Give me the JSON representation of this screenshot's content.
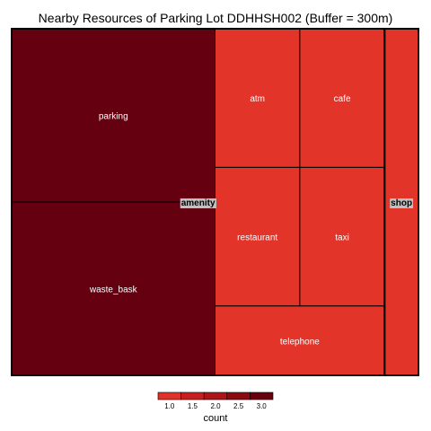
{
  "chart_data": {
    "type": "treemap",
    "title": "Nearby Resources of Parking Lot DDHHSH002 (Buffer = 300m)",
    "groups": [
      {
        "name": "amenity",
        "items": [
          {
            "name": "parking",
            "count": 3
          },
          {
            "name": "waste_bask",
            "count": 3
          },
          {
            "name": "atm",
            "count": 1
          },
          {
            "name": "cafe",
            "count": 1
          },
          {
            "name": "restaurant",
            "count": 1
          },
          {
            "name": "taxi",
            "count": 1
          },
          {
            "name": "telephone",
            "count": 1
          }
        ]
      },
      {
        "name": "shop",
        "items": [
          {
            "name": "",
            "count": 1
          }
        ]
      }
    ],
    "legend": {
      "title": "count",
      "ticks": [
        "1.0",
        "1.5",
        "2.0",
        "2.5",
        "3.0"
      ],
      "range": [
        1,
        3
      ],
      "colors": [
        "#e0312a",
        "#c71f20",
        "#ad1519",
        "#8b0b12",
        "#68000e"
      ],
      "position": "bottom"
    },
    "colors": {
      "low": "#e3342a",
      "high": "#650010",
      "border": "#000000",
      "group_label_bg": "#c0c0c0",
      "item_label": "#ffffff"
    }
  }
}
